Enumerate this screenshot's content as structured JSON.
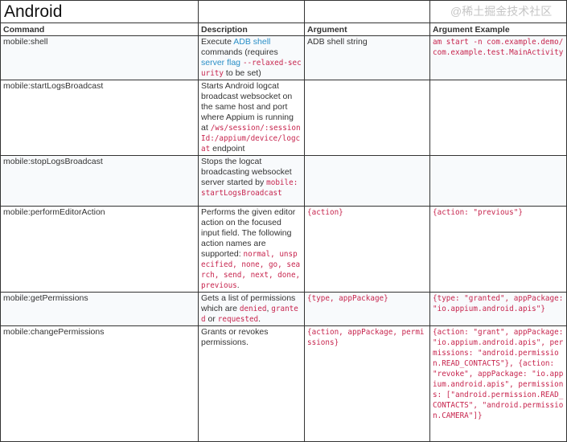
{
  "title": "Android",
  "headers": [
    "Command",
    "Description",
    "Argument",
    "Argument Example"
  ],
  "colors": {
    "code": "#c7254e",
    "link": "#2a8fc7",
    "border": "#333333"
  },
  "rows": [
    {
      "command": "mobile:shell",
      "description": [
        {
          "t": "Execute ",
          "k": "text"
        },
        {
          "t": "ADB shell",
          "k": "link"
        },
        {
          "t": " commands (requires ",
          "k": "text"
        },
        {
          "t": "server flag",
          "k": "link"
        },
        {
          "t": " ",
          "k": "text"
        },
        {
          "t": "--relaxed-security",
          "k": "code"
        },
        {
          "t": " to be set)",
          "k": "text"
        }
      ],
      "argument": [
        {
          "t": "ADB shell string",
          "k": "text"
        }
      ],
      "example": [
        {
          "t": "am start -n com.example.demo/com.example.test.MainActivity",
          "k": "code"
        }
      ]
    },
    {
      "command": "mobile:startLogsBroadcast",
      "description": [
        {
          "t": "Starts Android logcat broadcast websocket on the same host and port where Appium is running at ",
          "k": "text"
        },
        {
          "t": "/ws/session/:sessionId:/appium/device/logcat",
          "k": "code"
        },
        {
          "t": " endpoint",
          "k": "text"
        }
      ],
      "argument": [],
      "example": []
    },
    {
      "command": "mobile:stopLogsBroadcast",
      "description": [
        {
          "t": "Stops the logcat broadcasting websocket server started by ",
          "k": "text"
        },
        {
          "t": "mobile:startLogsBroadcast",
          "k": "code"
        }
      ],
      "argument": [],
      "example": []
    },
    {
      "command": "mobile:performEditorAction",
      "description": [
        {
          "t": "Performs the given editor action on the focused input field. The following action names are supported: ",
          "k": "text"
        },
        {
          "t": "normal, unspecified, none, go, search, send, next, done, previous",
          "k": "code"
        },
        {
          "t": ".",
          "k": "text"
        }
      ],
      "argument": [
        {
          "t": "{action}",
          "k": "code"
        }
      ],
      "example": [
        {
          "t": "{action: \"previous\"}",
          "k": "code"
        }
      ]
    },
    {
      "command": "mobile:getPermissions",
      "description": [
        {
          "t": "Gets a list of permissions which are ",
          "k": "text"
        },
        {
          "t": "denied",
          "k": "code"
        },
        {
          "t": ", ",
          "k": "text"
        },
        {
          "t": "granted",
          "k": "code"
        },
        {
          "t": " or ",
          "k": "text"
        },
        {
          "t": "requested",
          "k": "code"
        },
        {
          "t": ".",
          "k": "text"
        }
      ],
      "argument": [
        {
          "t": "{type, appPackage}",
          "k": "code"
        }
      ],
      "example": [
        {
          "t": "{type: \"granted\", appPackage: \"io.appium.android.apis\"}",
          "k": "code"
        }
      ]
    },
    {
      "command": "mobile:changePermissions",
      "description": [
        {
          "t": "Grants or revokes permissions.",
          "k": "text"
        }
      ],
      "argument": [
        {
          "t": "{action, appPackage, permissions}",
          "k": "code"
        }
      ],
      "example": [
        {
          "t": "{action: \"grant\", appPackage: \"io.appium.android.apis\", permissions: \"android.permission.READ_CONTACTS\"}, {action: \"revoke\", appPackage: \"io.appium.android.apis\", permissions: [\"android.permission.READ_CONTACTS\", \"android.permission.CAMERA\"]}",
          "k": "code"
        }
      ]
    }
  ],
  "watermark": "@稀土掘金技术社区"
}
